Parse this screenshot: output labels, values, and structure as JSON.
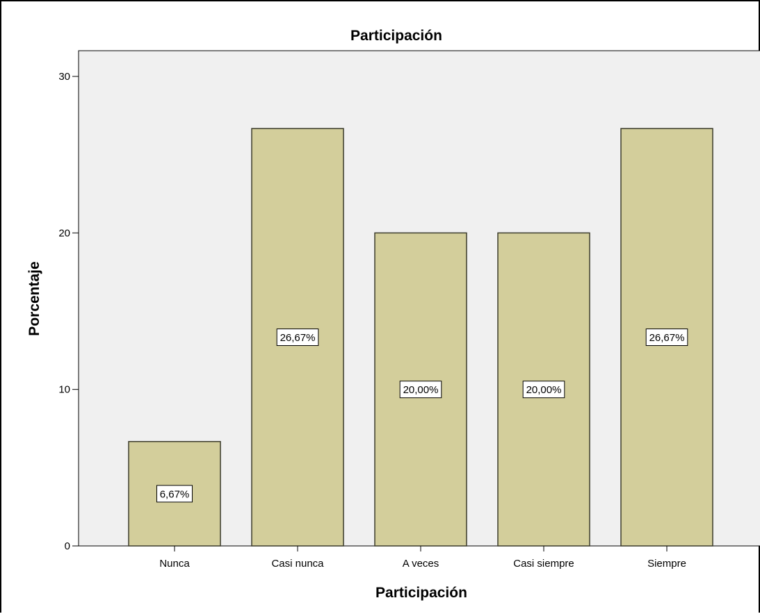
{
  "chart_data": {
    "type": "bar",
    "title": "Participación",
    "xlabel": "Participación",
    "ylabel": "Porcentaje",
    "categories": [
      "Nunca",
      "Casi nunca",
      "A veces",
      "Casi siempre",
      "Siempre"
    ],
    "values": [
      6.67,
      26.67,
      20.0,
      20.0,
      26.67
    ],
    "data_labels": [
      "6,67%",
      "26,67%",
      "20,00%",
      "20,00%",
      "26,67%"
    ],
    "ylim": [
      0,
      30
    ],
    "yticks": [
      0,
      10,
      20,
      30
    ],
    "grid": false,
    "legend": "none",
    "colors": {
      "bar_fill": "#d3ce9b",
      "bar_stroke": "#3a3a2a",
      "plot_background": "#f0f0f0",
      "axis": "#000000"
    }
  }
}
